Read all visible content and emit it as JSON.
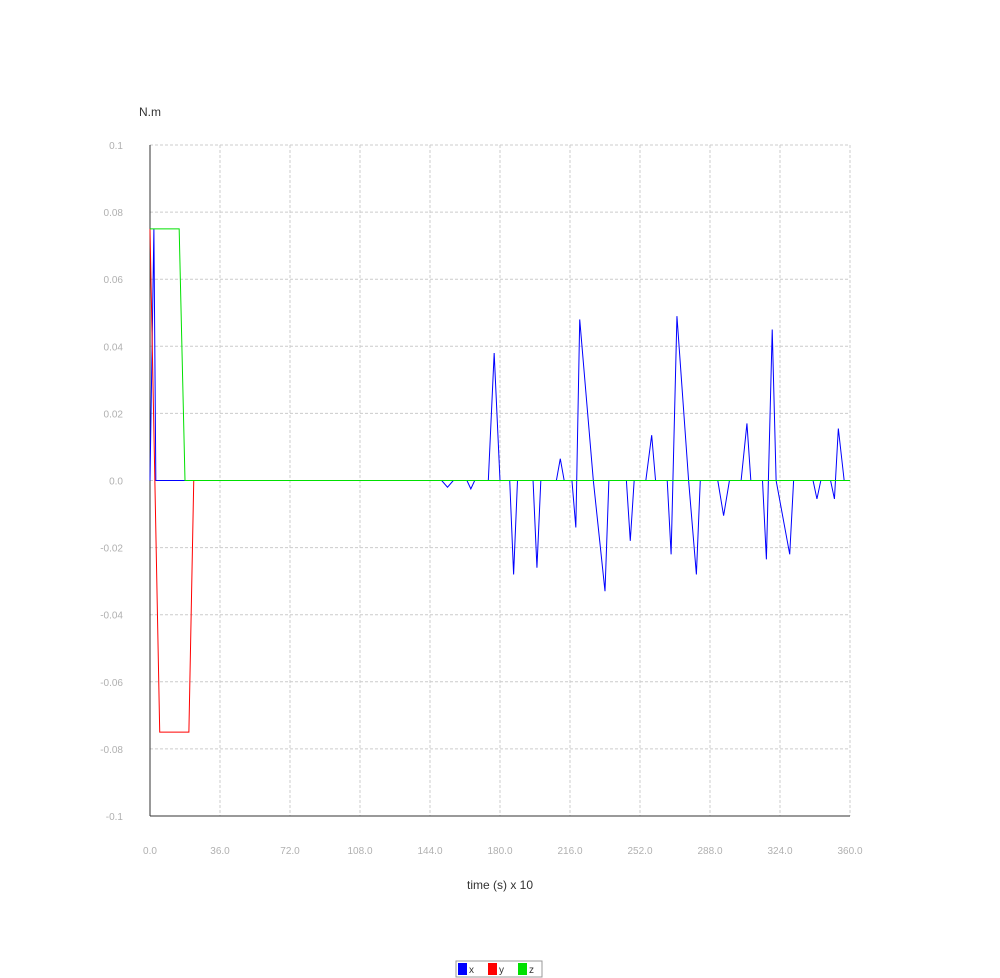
{
  "chart_data": {
    "type": "line",
    "ylabel": "N.m",
    "xlabel": "time (s) x 10",
    "xlim": [
      0,
      360
    ],
    "ylim": [
      -0.1,
      0.1
    ],
    "x_ticks": [
      0,
      36,
      72,
      108,
      144,
      180,
      216,
      252,
      288,
      324,
      360
    ],
    "x_tick_labels": [
      "0.0",
      "36.0",
      "72.0",
      "108.0",
      "144.0",
      "180.0",
      "216.0",
      "252.0",
      "288.0",
      "324.0",
      "360.0"
    ],
    "y_ticks": [
      0.1,
      0.08,
      0.06,
      0.04,
      0.02,
      0.0,
      -0.02,
      -0.04,
      -0.06,
      -0.08,
      -0.1
    ],
    "y_tick_labels": [
      "0.1",
      "0.08",
      "0.06",
      "0.04",
      "0.02",
      "0.0",
      "-0.02",
      "-0.04",
      "-0.06",
      "-0.08",
      "-0.1"
    ],
    "grid": true,
    "legend_position": "bottom-center",
    "series": [
      {
        "name": "x",
        "color": "#0000ff",
        "points": [
          [
            0,
            0
          ],
          [
            2,
            0.075
          ],
          [
            3,
            0
          ],
          [
            150,
            0
          ],
          [
            153,
            -0.002
          ],
          [
            156,
            0
          ],
          [
            163,
            0
          ],
          [
            165,
            -0.0025
          ],
          [
            167,
            0
          ],
          [
            174,
            0
          ],
          [
            177,
            0.038
          ],
          [
            180,
            0
          ],
          [
            185,
            0
          ],
          [
            187,
            -0.028
          ],
          [
            189,
            0
          ],
          [
            197,
            0
          ],
          [
            199,
            -0.026
          ],
          [
            201,
            0
          ],
          [
            209,
            0
          ],
          [
            211,
            0.0065
          ],
          [
            213,
            0
          ],
          [
            217,
            0
          ],
          [
            219,
            -0.014
          ],
          [
            221,
            0.048
          ],
          [
            228,
            0
          ],
          [
            234,
            -0.033
          ],
          [
            236,
            0
          ],
          [
            245,
            0
          ],
          [
            247,
            -0.018
          ],
          [
            249,
            0
          ],
          [
            255,
            0
          ],
          [
            258,
            0.0135
          ],
          [
            260,
            0
          ],
          [
            266,
            0
          ],
          [
            268,
            -0.022
          ],
          [
            271,
            0.049
          ],
          [
            277,
            0
          ],
          [
            281,
            -0.028
          ],
          [
            283,
            0
          ],
          [
            292,
            0
          ],
          [
            295,
            -0.0105
          ],
          [
            298,
            0
          ],
          [
            304,
            0
          ],
          [
            307,
            0.017
          ],
          [
            309,
            0
          ],
          [
            315,
            0
          ],
          [
            317,
            -0.0235
          ],
          [
            320,
            0.045
          ],
          [
            322,
            0
          ],
          [
            329,
            -0.022
          ],
          [
            331,
            0
          ],
          [
            341,
            0
          ],
          [
            343,
            -0.0055
          ],
          [
            345,
            0
          ],
          [
            350,
            0
          ],
          [
            352,
            -0.0055
          ],
          [
            354,
            0.0155
          ],
          [
            357,
            0
          ],
          [
            360,
            0
          ]
        ]
      },
      {
        "name": "y",
        "color": "#ff0000",
        "points": [
          [
            0,
            0.075
          ],
          [
            5,
            -0.075
          ],
          [
            20,
            -0.075
          ],
          [
            22.5,
            0
          ],
          [
            360,
            0
          ]
        ]
      },
      {
        "name": "z",
        "color": "#00e000",
        "points": [
          [
            0,
            0.075
          ],
          [
            15,
            0.075
          ],
          [
            18,
            0
          ],
          [
            360,
            0
          ]
        ]
      }
    ]
  }
}
